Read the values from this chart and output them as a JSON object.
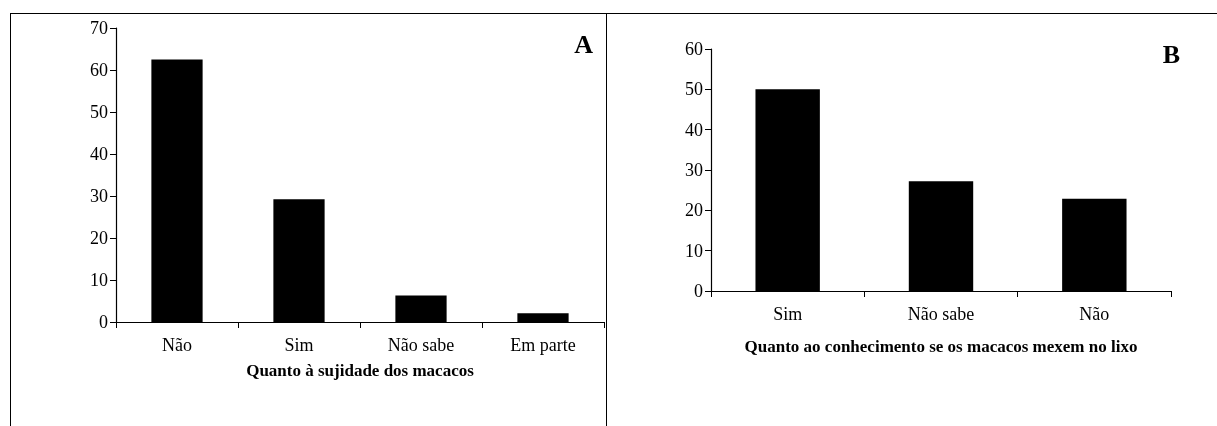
{
  "chart_data": [
    {
      "type": "bar",
      "title": "A",
      "xlabel": "Quanto à sujidade dos macacos",
      "categories": [
        "Não",
        "Sim",
        "Não sabe",
        "Em parte"
      ],
      "values": [
        62.5,
        29.2,
        6.3,
        2.1
      ],
      "color": "#000000",
      "ylim": [
        0,
        70
      ],
      "yticks": [
        0,
        10,
        20,
        30,
        40,
        50,
        60,
        70
      ],
      "grid": false
    },
    {
      "type": "bar",
      "title": "B",
      "xlabel": "Quanto ao conhecimento se os macacos mexem no lixo",
      "categories": [
        "Sim",
        "Não sabe",
        "Não"
      ],
      "values": [
        50.0,
        27.2,
        22.9
      ],
      "color": "#000000",
      "ylim": [
        0,
        60
      ],
      "yticks": [
        0,
        10,
        20,
        30,
        40,
        50,
        60
      ],
      "grid": false
    }
  ]
}
